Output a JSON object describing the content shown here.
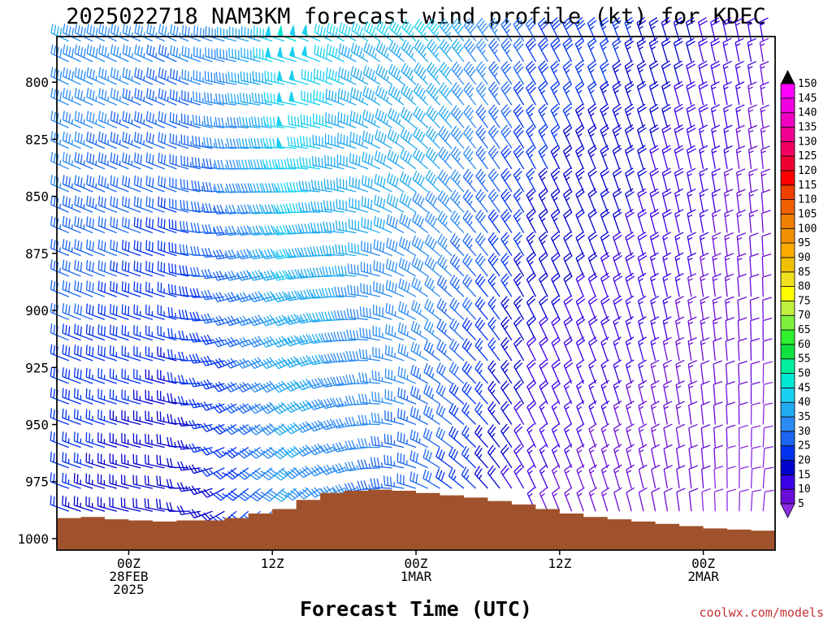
{
  "chart_data": {
    "type": "wind-barb-profile",
    "title": "2025022718 NAM3KM forecast wind profile (kt) for KDEC",
    "xlabel": "Forecast Time (UTC)",
    "ylabel": "",
    "credit": "coolwx.com/models",
    "x_ticks": [
      {
        "hour": 6,
        "lines": [
          "00Z",
          "28FEB",
          "2025"
        ]
      },
      {
        "hour": 18,
        "lines": [
          "12Z"
        ]
      },
      {
        "hour": 30,
        "lines": [
          "00Z",
          "1MAR"
        ]
      },
      {
        "hour": 42,
        "lines": [
          "12Z"
        ]
      },
      {
        "hour": 54,
        "lines": [
          "00Z",
          "2MAR"
        ]
      }
    ],
    "xlim_hours": [
      0,
      60
    ],
    "y_ticks": [
      800,
      825,
      850,
      875,
      900,
      925,
      950,
      975,
      1000
    ],
    "ylim_hpa": [
      780,
      1005
    ],
    "barb_levels_hpa": [
      782,
      791,
      801,
      810,
      820,
      829,
      838,
      848,
      857,
      866,
      876,
      885,
      894,
      904,
      913,
      922,
      932,
      941,
      950,
      960,
      969,
      978,
      988
    ],
    "profile_hours": [
      1,
      2,
      3,
      4,
      5,
      6,
      7,
      8,
      9,
      10,
      11,
      12,
      13,
      14,
      15,
      16,
      17,
      18,
      19,
      20,
      21,
      22,
      23,
      24,
      25,
      26,
      27,
      28,
      29,
      30,
      31,
      32,
      33,
      34,
      35,
      36,
      37,
      38,
      39,
      40,
      41,
      42,
      43,
      44,
      45,
      46,
      47,
      48,
      49,
      50,
      51,
      52,
      53,
      54,
      55,
      56,
      57,
      58,
      59
    ],
    "wind_key_frames": [
      {
        "hour": 1,
        "upper_dir": 295,
        "upper_spd": 40,
        "lower_dir": 290,
        "lower_spd": 25
      },
      {
        "hour": 10,
        "upper_dir": 295,
        "upper_spd": 35,
        "lower_dir": 280,
        "lower_spd": 20
      },
      {
        "hour": 15,
        "upper_dir": 285,
        "upper_spd": 40,
        "lower_dir": 230,
        "lower_spd": 25
      },
      {
        "hour": 20,
        "upper_dir": 290,
        "upper_spd": 50,
        "lower_dir": 225,
        "lower_spd": 40
      },
      {
        "hour": 25,
        "upper_dir": 300,
        "upper_spd": 45,
        "lower_dir": 250,
        "lower_spd": 35
      },
      {
        "hour": 32,
        "upper_dir": 320,
        "upper_spd": 45,
        "lower_dir": 300,
        "lower_spd": 30
      },
      {
        "hour": 40,
        "upper_dir": 330,
        "upper_spd": 30,
        "lower_dir": 335,
        "lower_spd": 15
      },
      {
        "hour": 48,
        "upper_dir": 340,
        "upper_spd": 25,
        "lower_dir": 345,
        "lower_spd": 12
      },
      {
        "hour": 59,
        "upper_dir": 350,
        "upper_spd": 15,
        "lower_dir": 5,
        "lower_spd": 8
      }
    ],
    "surface_pressure_hpa": [
      {
        "hour": 0,
        "p": 991
      },
      {
        "hour": 2,
        "p": 990.5
      },
      {
        "hour": 4,
        "p": 991.5
      },
      {
        "hour": 6,
        "p": 992
      },
      {
        "hour": 8,
        "p": 992.5
      },
      {
        "hour": 10,
        "p": 992
      },
      {
        "hour": 12,
        "p": 992
      },
      {
        "hour": 14,
        "p": 991
      },
      {
        "hour": 16,
        "p": 989
      },
      {
        "hour": 18,
        "p": 987
      },
      {
        "hour": 20,
        "p": 983
      },
      {
        "hour": 22,
        "p": 980
      },
      {
        "hour": 24,
        "p": 979
      },
      {
        "hour": 26,
        "p": 978.5
      },
      {
        "hour": 28,
        "p": 979
      },
      {
        "hour": 30,
        "p": 980
      },
      {
        "hour": 32,
        "p": 981
      },
      {
        "hour": 34,
        "p": 982
      },
      {
        "hour": 36,
        "p": 983.5
      },
      {
        "hour": 38,
        "p": 985
      },
      {
        "hour": 40,
        "p": 987
      },
      {
        "hour": 42,
        "p": 989
      },
      {
        "hour": 44,
        "p": 990.5
      },
      {
        "hour": 46,
        "p": 991.5
      },
      {
        "hour": 48,
        "p": 992.5
      },
      {
        "hour": 50,
        "p": 993.5
      },
      {
        "hour": 52,
        "p": 994.5
      },
      {
        "hour": 54,
        "p": 995.5
      },
      {
        "hour": 56,
        "p": 996
      },
      {
        "hour": 58,
        "p": 996.5
      },
      {
        "hour": 60,
        "p": 996.5
      }
    ],
    "colorbar": {
      "labels": [
        5,
        10,
        15,
        20,
        25,
        30,
        35,
        40,
        45,
        50,
        55,
        60,
        65,
        70,
        75,
        80,
        85,
        90,
        95,
        100,
        105,
        110,
        115,
        120,
        125,
        130,
        135,
        140,
        145,
        150
      ],
      "colors": [
        "#8a2be2",
        "#6a0dd6",
        "#3a00e6",
        "#0000cc",
        "#0033ee",
        "#1a66f0",
        "#2b8bf2",
        "#22aaf0",
        "#1ad0f0",
        "#00e8d0",
        "#00f0a0",
        "#10e040",
        "#30f030",
        "#80f040",
        "#c0f040",
        "#ffff00",
        "#f0e020",
        "#f0c000",
        "#ffaa00",
        "#f09000",
        "#f08000",
        "#f06000",
        "#f04000",
        "#ff0000",
        "#f00030",
        "#f00060",
        "#f00090",
        "#f000c0",
        "#f000e0",
        "#ff00ff"
      ]
    },
    "terrain_color": "#a0522d"
  }
}
